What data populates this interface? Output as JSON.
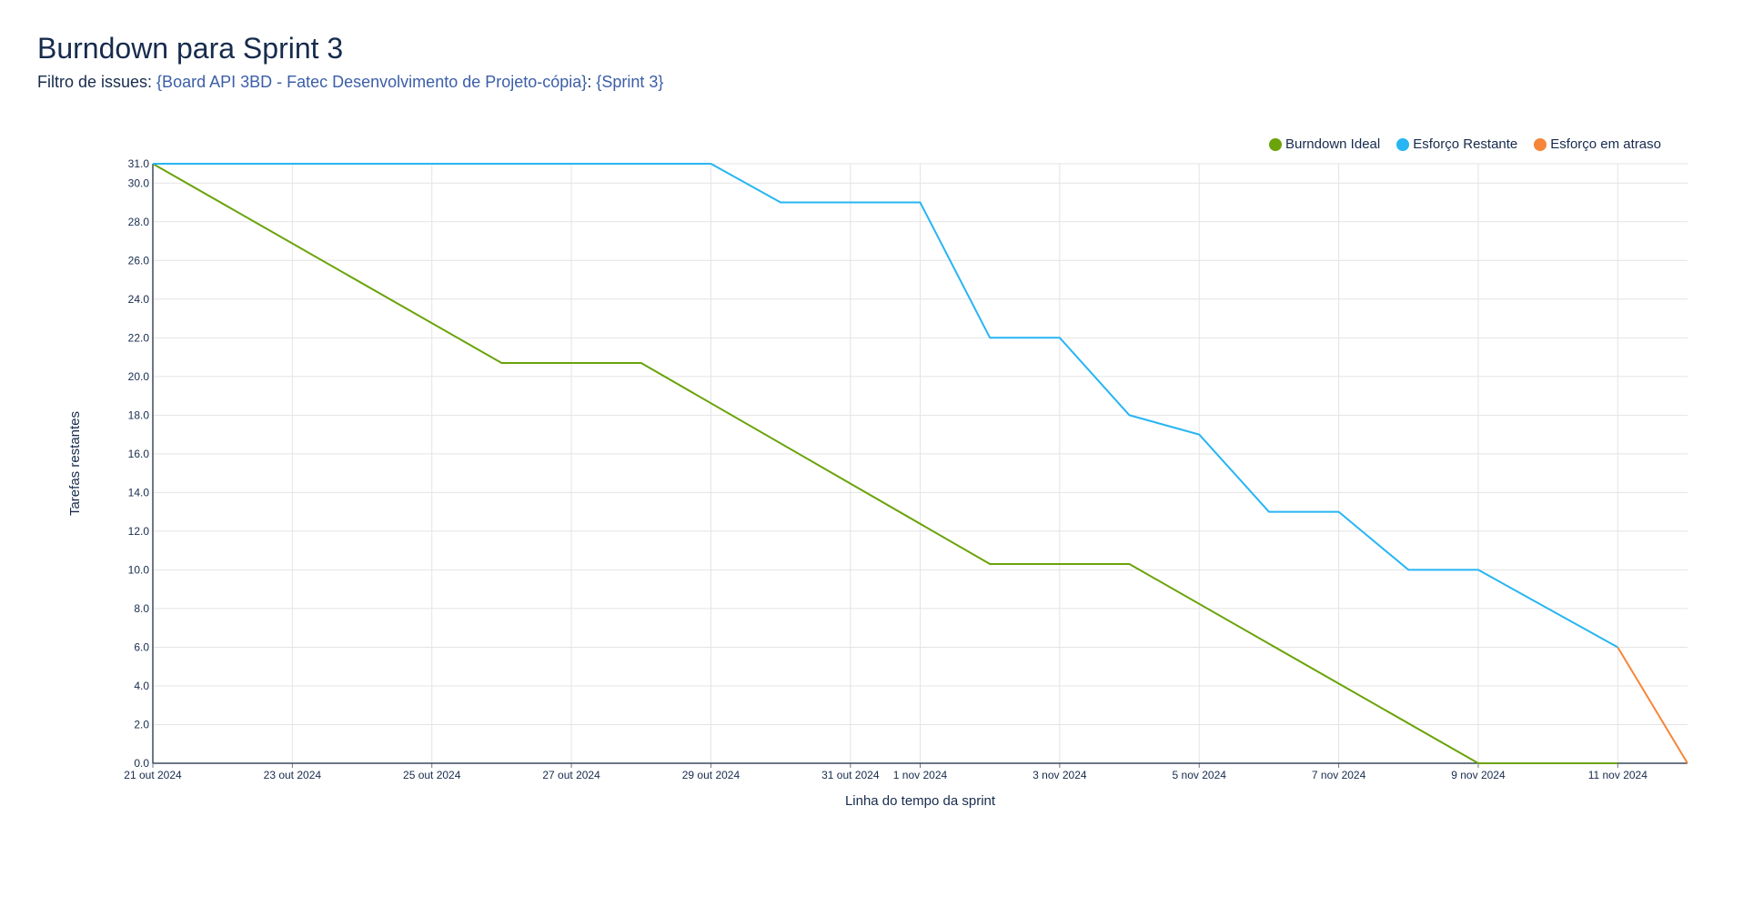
{
  "header": {
    "title": "Burndown para Sprint 3",
    "filter_prefix": "Filtro de issues: ",
    "filter_board": "{Board API 3BD - Fatec Desenvolvimento de Projeto-cópia}",
    "filter_separator": ": ",
    "filter_sprint": "{Sprint 3}"
  },
  "legend": {
    "items": [
      {
        "label": "Burndown Ideal",
        "color": "#6aa30a"
      },
      {
        "label": "Esforço Restante",
        "color": "#27b5f3"
      },
      {
        "label": "Esforço em atraso",
        "color": "#f5863a"
      }
    ]
  },
  "chart_data": {
    "type": "line",
    "title": "",
    "xlabel": "Linha do tempo da sprint",
    "ylabel": "Tarefas restantes",
    "x_range": [
      "2024-10-21",
      "2024-11-12"
    ],
    "ylim": [
      0,
      31
    ],
    "y_ticks": [
      0,
      2,
      4,
      6,
      8,
      10,
      12,
      14,
      16,
      18,
      20,
      22,
      24,
      26,
      28,
      30,
      31
    ],
    "y_tick_labels": [
      "0.0",
      "2.0",
      "4.0",
      "6.0",
      "8.0",
      "10.0",
      "12.0",
      "14.0",
      "16.0",
      "18.0",
      "20.0",
      "22.0",
      "24.0",
      "26.0",
      "28.0",
      "30.0",
      "31.0"
    ],
    "x_ticks": [
      {
        "date": "2024-10-21",
        "label": "21 out 2024"
      },
      {
        "date": "2024-10-23",
        "label": "23 out 2024"
      },
      {
        "date": "2024-10-25",
        "label": "25 out 2024"
      },
      {
        "date": "2024-10-27",
        "label": "27 out 2024"
      },
      {
        "date": "2024-10-29",
        "label": "29 out 2024"
      },
      {
        "date": "2024-10-31",
        "label": "31 out 2024"
      },
      {
        "date": "2024-11-01",
        "label": "1 nov 2024"
      },
      {
        "date": "2024-11-03",
        "label": "3 nov 2024"
      },
      {
        "date": "2024-11-05",
        "label": "5 nov 2024"
      },
      {
        "date": "2024-11-07",
        "label": "7 nov 2024"
      },
      {
        "date": "2024-11-09",
        "label": "9 nov 2024"
      },
      {
        "date": "2024-11-11",
        "label": "11 nov 2024"
      }
    ],
    "grid": true,
    "legend_position": "top-right",
    "series": [
      {
        "name": "Burndown Ideal",
        "color": "#6aa30a",
        "points": [
          {
            "x": "2024-10-21",
            "y": 31
          },
          {
            "x": "2024-10-26",
            "y": 20.7
          },
          {
            "x": "2024-10-28",
            "y": 20.7
          },
          {
            "x": "2024-11-02",
            "y": 10.3
          },
          {
            "x": "2024-11-04",
            "y": 10.3
          },
          {
            "x": "2024-11-09",
            "y": 0
          },
          {
            "x": "2024-11-11",
            "y": 0
          }
        ]
      },
      {
        "name": "Esforço Restante",
        "color": "#27b5f3",
        "points": [
          {
            "x": "2024-10-21",
            "y": 31
          },
          {
            "x": "2024-10-29",
            "y": 31
          },
          {
            "x": "2024-10-30",
            "y": 29
          },
          {
            "x": "2024-11-01",
            "y": 29
          },
          {
            "x": "2024-11-02",
            "y": 22
          },
          {
            "x": "2024-11-03",
            "y": 22
          },
          {
            "x": "2024-11-04",
            "y": 18
          },
          {
            "x": "2024-11-05",
            "y": 17
          },
          {
            "x": "2024-11-06",
            "y": 13
          },
          {
            "x": "2024-11-07",
            "y": 13
          },
          {
            "x": "2024-11-08",
            "y": 10
          },
          {
            "x": "2024-11-09",
            "y": 10
          },
          {
            "x": "2024-11-11",
            "y": 6
          }
        ]
      },
      {
        "name": "Esforço em atraso",
        "color": "#f5863a",
        "points": [
          {
            "x": "2024-11-11",
            "y": 6
          },
          {
            "x": "2024-11-12",
            "y": 0
          }
        ]
      }
    ]
  }
}
